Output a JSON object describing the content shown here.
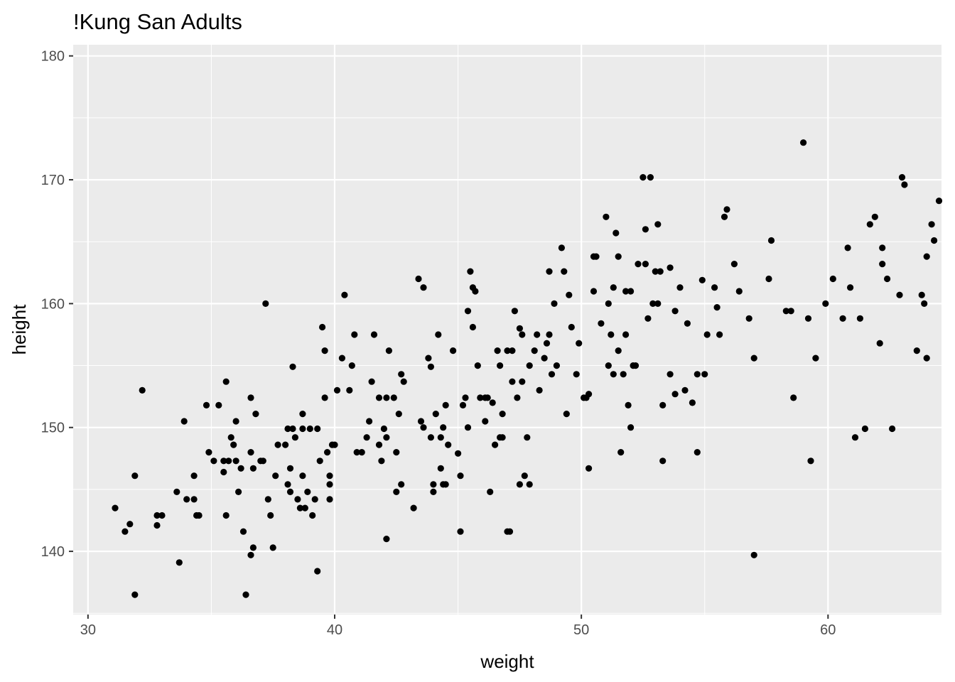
{
  "chart_data": {
    "type": "scatter",
    "title": "!Kung San Adults",
    "xlabel": "weight",
    "ylabel": "height",
    "xlim": [
      29.4,
      64.6
    ],
    "ylim": [
      134.9,
      180.9
    ],
    "xticks": [
      "30",
      "40",
      "50",
      "60"
    ],
    "yticks": [
      "140",
      "150",
      "160",
      "170",
      "180"
    ],
    "grid": true,
    "colors": {
      "panel": "#ebebeb",
      "grid": "#ffffff",
      "point": "#000000",
      "tick": "#4d4d4d"
    },
    "points": [
      [
        31.1,
        143.5
      ],
      [
        31.5,
        141.6
      ],
      [
        31.7,
        142.2
      ],
      [
        31.9,
        146.1
      ],
      [
        31.9,
        136.5
      ],
      [
        32.2,
        153.0
      ],
      [
        32.8,
        142.9
      ],
      [
        32.8,
        142.1
      ],
      [
        33.0,
        142.9
      ],
      [
        33.6,
        144.8
      ],
      [
        33.7,
        139.1
      ],
      [
        33.9,
        150.5
      ],
      [
        34.0,
        144.2
      ],
      [
        34.3,
        146.1
      ],
      [
        34.3,
        144.2
      ],
      [
        34.4,
        142.9
      ],
      [
        34.5,
        142.9
      ],
      [
        34.8,
        151.8
      ],
      [
        34.9,
        148.0
      ],
      [
        35.1,
        147.3
      ],
      [
        35.3,
        151.8
      ],
      [
        35.5,
        147.3
      ],
      [
        35.5,
        146.4
      ],
      [
        35.6,
        153.7
      ],
      [
        35.6,
        142.9
      ],
      [
        35.7,
        147.3
      ],
      [
        35.8,
        149.2
      ],
      [
        35.9,
        148.6
      ],
      [
        36.0,
        147.3
      ],
      [
        36.0,
        150.5
      ],
      [
        36.1,
        144.8
      ],
      [
        36.2,
        146.7
      ],
      [
        36.3,
        141.6
      ],
      [
        36.4,
        136.5
      ],
      [
        36.6,
        152.4
      ],
      [
        36.6,
        148.0
      ],
      [
        36.6,
        139.7
      ],
      [
        36.7,
        146.7
      ],
      [
        36.7,
        140.3
      ],
      [
        36.8,
        151.1
      ],
      [
        37.0,
        147.3
      ],
      [
        37.1,
        147.3
      ],
      [
        37.2,
        160.0
      ],
      [
        37.3,
        144.2
      ],
      [
        37.4,
        142.9
      ],
      [
        37.5,
        140.3
      ],
      [
        37.6,
        146.1
      ],
      [
        37.7,
        148.6
      ],
      [
        38.0,
        148.6
      ],
      [
        38.1,
        149.9
      ],
      [
        38.1,
        145.4
      ],
      [
        38.2,
        144.8
      ],
      [
        38.2,
        146.7
      ],
      [
        38.3,
        149.9
      ],
      [
        38.3,
        154.9
      ],
      [
        38.4,
        149.2
      ],
      [
        38.5,
        144.2
      ],
      [
        38.6,
        143.5
      ],
      [
        38.7,
        151.1
      ],
      [
        38.7,
        146.1
      ],
      [
        38.7,
        149.9
      ],
      [
        38.8,
        143.5
      ],
      [
        38.9,
        144.8
      ],
      [
        39.0,
        149.9
      ],
      [
        39.1,
        142.9
      ],
      [
        39.2,
        144.2
      ],
      [
        39.3,
        149.9
      ],
      [
        39.3,
        138.4
      ],
      [
        39.4,
        147.3
      ],
      [
        39.5,
        158.1
      ],
      [
        39.6,
        156.2
      ],
      [
        39.6,
        152.4
      ],
      [
        39.7,
        148.0
      ],
      [
        39.8,
        146.1
      ],
      [
        39.8,
        145.4
      ],
      [
        39.8,
        144.2
      ],
      [
        39.9,
        148.6
      ],
      [
        40.0,
        148.6
      ],
      [
        40.1,
        153.0
      ],
      [
        40.3,
        155.6
      ],
      [
        40.4,
        160.7
      ],
      [
        40.6,
        153.0
      ],
      [
        40.7,
        155.0
      ],
      [
        40.8,
        157.5
      ],
      [
        40.9,
        148.0
      ],
      [
        41.1,
        148.0
      ],
      [
        41.3,
        149.2
      ],
      [
        41.4,
        150.5
      ],
      [
        41.5,
        153.7
      ],
      [
        41.6,
        157.5
      ],
      [
        41.8,
        152.4
      ],
      [
        41.8,
        148.6
      ],
      [
        41.9,
        147.3
      ],
      [
        42.0,
        149.9
      ],
      [
        42.1,
        152.4
      ],
      [
        42.1,
        149.2
      ],
      [
        42.1,
        141.0
      ],
      [
        42.2,
        156.2
      ],
      [
        42.4,
        152.4
      ],
      [
        42.5,
        148.0
      ],
      [
        42.5,
        144.8
      ],
      [
        42.6,
        151.1
      ],
      [
        42.7,
        145.4
      ],
      [
        42.7,
        154.3
      ],
      [
        42.8,
        153.7
      ],
      [
        43.2,
        143.5
      ],
      [
        43.4,
        162.0
      ],
      [
        43.5,
        150.5
      ],
      [
        43.6,
        161.3
      ],
      [
        43.6,
        150.0
      ],
      [
        43.8,
        155.6
      ],
      [
        43.9,
        154.9
      ],
      [
        43.9,
        149.2
      ],
      [
        44.0,
        145.4
      ],
      [
        44.0,
        144.8
      ],
      [
        44.1,
        151.1
      ],
      [
        44.2,
        157.5
      ],
      [
        44.3,
        149.2
      ],
      [
        44.3,
        146.7
      ],
      [
        44.4,
        150.0
      ],
      [
        44.4,
        145.4
      ],
      [
        44.5,
        151.8
      ],
      [
        44.5,
        145.4
      ],
      [
        44.6,
        148.6
      ],
      [
        44.8,
        156.2
      ],
      [
        45.0,
        147.9
      ],
      [
        45.1,
        146.1
      ],
      [
        45.1,
        141.6
      ],
      [
        45.2,
        151.8
      ],
      [
        45.3,
        152.4
      ],
      [
        45.4,
        159.4
      ],
      [
        45.4,
        150.0
      ],
      [
        45.5,
        162.6
      ],
      [
        45.6,
        158.1
      ],
      [
        45.6,
        161.3
      ],
      [
        45.7,
        161.0
      ],
      [
        45.8,
        155.0
      ],
      [
        45.9,
        152.4
      ],
      [
        46.1,
        150.5
      ],
      [
        46.1,
        152.4
      ],
      [
        46.2,
        152.4
      ],
      [
        46.3,
        144.8
      ],
      [
        46.4,
        152.0
      ],
      [
        46.5,
        148.6
      ],
      [
        46.6,
        156.2
      ],
      [
        46.7,
        155.0
      ],
      [
        46.7,
        149.2
      ],
      [
        46.8,
        151.1
      ],
      [
        46.8,
        149.2
      ],
      [
        47.0,
        156.2
      ],
      [
        47.0,
        141.6
      ],
      [
        47.1,
        141.6
      ],
      [
        47.2,
        156.2
      ],
      [
        47.2,
        153.7
      ],
      [
        47.3,
        159.4
      ],
      [
        47.4,
        152.4
      ],
      [
        47.5,
        158.0
      ],
      [
        47.5,
        145.4
      ],
      [
        47.6,
        157.5
      ],
      [
        47.6,
        153.7
      ],
      [
        47.7,
        146.1
      ],
      [
        47.8,
        149.2
      ],
      [
        47.9,
        155.0
      ],
      [
        47.9,
        145.4
      ],
      [
        48.1,
        156.2
      ],
      [
        48.2,
        157.5
      ],
      [
        48.3,
        153.0
      ],
      [
        48.5,
        155.6
      ],
      [
        48.6,
        156.8
      ],
      [
        48.7,
        162.6
      ],
      [
        48.7,
        157.5
      ],
      [
        48.8,
        154.3
      ],
      [
        48.9,
        160.0
      ],
      [
        49.0,
        155.0
      ],
      [
        49.2,
        164.5
      ],
      [
        49.3,
        162.6
      ],
      [
        49.4,
        151.1
      ],
      [
        49.5,
        160.7
      ],
      [
        49.6,
        158.1
      ],
      [
        49.8,
        154.3
      ],
      [
        49.9,
        156.8
      ],
      [
        50.1,
        152.4
      ],
      [
        50.2,
        152.4
      ],
      [
        50.3,
        146.7
      ],
      [
        50.3,
        152.7
      ],
      [
        50.5,
        161.0
      ],
      [
        50.5,
        163.8
      ],
      [
        50.6,
        163.8
      ],
      [
        50.8,
        158.4
      ],
      [
        51.0,
        167.0
      ],
      [
        51.1,
        160.0
      ],
      [
        51.1,
        155.0
      ],
      [
        51.2,
        157.5
      ],
      [
        51.3,
        161.3
      ],
      [
        51.3,
        154.3
      ],
      [
        51.4,
        165.7
      ],
      [
        51.5,
        156.2
      ],
      [
        51.5,
        163.8
      ],
      [
        51.6,
        148.0
      ],
      [
        51.7,
        154.3
      ],
      [
        51.8,
        157.5
      ],
      [
        51.8,
        161.0
      ],
      [
        51.9,
        151.8
      ],
      [
        52.0,
        161.0
      ],
      [
        52.0,
        150.0
      ],
      [
        52.1,
        155.0
      ],
      [
        52.2,
        155.0
      ],
      [
        52.3,
        163.2
      ],
      [
        52.5,
        170.2
      ],
      [
        52.6,
        166.0
      ],
      [
        52.6,
        163.2
      ],
      [
        52.7,
        158.8
      ],
      [
        52.8,
        170.2
      ],
      [
        52.9,
        160.0
      ],
      [
        53.0,
        162.6
      ],
      [
        53.1,
        166.4
      ],
      [
        53.1,
        160.0
      ],
      [
        53.2,
        162.6
      ],
      [
        53.3,
        147.3
      ],
      [
        53.3,
        151.8
      ],
      [
        53.6,
        162.9
      ],
      [
        53.6,
        154.3
      ],
      [
        53.8,
        159.4
      ],
      [
        53.8,
        152.7
      ],
      [
        54.0,
        161.3
      ],
      [
        54.2,
        153.0
      ],
      [
        54.3,
        158.4
      ],
      [
        54.5,
        152.0
      ],
      [
        54.7,
        148.0
      ],
      [
        54.7,
        154.3
      ],
      [
        54.9,
        161.9
      ],
      [
        55.0,
        154.3
      ],
      [
        55.1,
        157.5
      ],
      [
        55.4,
        161.3
      ],
      [
        55.5,
        159.7
      ],
      [
        55.6,
        157.5
      ],
      [
        55.8,
        167.0
      ],
      [
        55.9,
        167.6
      ],
      [
        56.2,
        163.2
      ],
      [
        56.4,
        161.0
      ],
      [
        56.8,
        158.8
      ],
      [
        57.0,
        155.6
      ],
      [
        57.0,
        139.7
      ],
      [
        57.6,
        162.0
      ],
      [
        57.7,
        165.1
      ],
      [
        58.3,
        159.4
      ],
      [
        58.5,
        159.4
      ],
      [
        58.6,
        152.4
      ],
      [
        59.0,
        173.0
      ],
      [
        59.2,
        158.8
      ],
      [
        59.3,
        147.3
      ],
      [
        59.5,
        155.6
      ],
      [
        59.9,
        160.0
      ],
      [
        60.2,
        162.0
      ],
      [
        60.6,
        158.8
      ],
      [
        60.8,
        164.5
      ],
      [
        60.9,
        161.3
      ],
      [
        61.1,
        149.2
      ],
      [
        61.3,
        158.8
      ],
      [
        61.5,
        149.9
      ],
      [
        61.7,
        166.4
      ],
      [
        61.9,
        167.0
      ],
      [
        62.1,
        156.8
      ],
      [
        62.2,
        163.2
      ],
      [
        62.2,
        164.5
      ],
      [
        62.4,
        162.0
      ],
      [
        62.6,
        149.9
      ],
      [
        62.9,
        160.7
      ],
      [
        63.0,
        170.2
      ],
      [
        63.1,
        169.6
      ],
      [
        63.6,
        156.2
      ],
      [
        63.8,
        160.7
      ],
      [
        63.9,
        160.0
      ],
      [
        64.0,
        155.6
      ],
      [
        64.0,
        163.8
      ],
      [
        64.2,
        166.4
      ],
      [
        64.3,
        165.1
      ],
      [
        64.5,
        168.3
      ]
    ]
  }
}
